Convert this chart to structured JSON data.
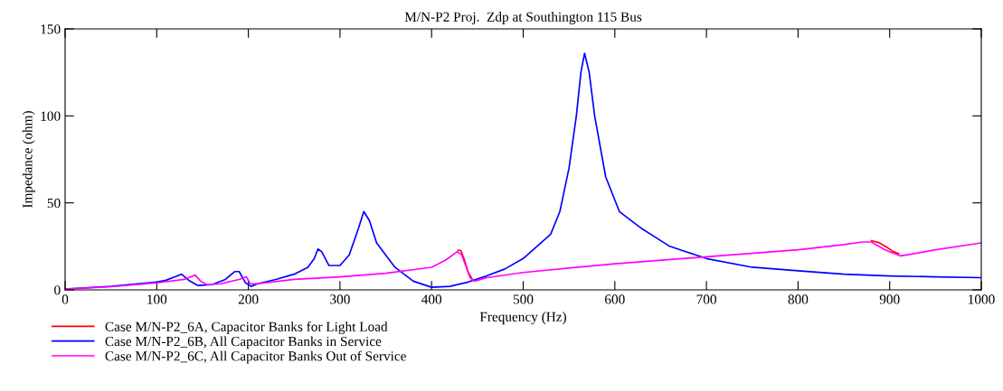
{
  "chart_data": {
    "type": "line",
    "title": "M/N-P2 Proj.  Zdp at Southington 115 Bus",
    "xlabel": "Frequency (Hz)",
    "ylabel": "Impedance (ohm)",
    "xlim": [
      0,
      1000
    ],
    "xticks": [
      0,
      100,
      200,
      300,
      400,
      500,
      600,
      700,
      800,
      900,
      1000
    ],
    "ylim": [
      0,
      150
    ],
    "yticks": [
      0,
      50,
      100,
      150
    ],
    "grid": false,
    "legend": "bottom left",
    "line_style": "solid",
    "series": [
      {
        "name": "Case M/N-P2_6A, Capacitor Banks for Light Load",
        "color": "#ff0000",
        "x": [
          429,
          432,
          436,
          440,
          444,
          660,
          880,
          888,
          896,
          904,
          910
        ],
        "values": [
          22.8,
          22.6,
          17,
          10,
          6.5,
          null,
          28.3,
          27.2,
          24.8,
          22,
          20.8
        ]
      },
      {
        "name": "Case M/N-P2_6B, All Capacitor Banks in Service",
        "color": "#0000ff",
        "x": [
          0,
          50,
          100,
          110,
          120,
          127,
          135,
          145,
          160,
          175,
          185,
          190,
          197,
          203,
          210,
          230,
          250,
          265,
          272,
          276,
          280,
          288,
          300,
          310,
          320,
          326,
          332,
          340,
          360,
          380,
          400,
          420,
          440,
          460,
          480,
          500,
          515,
          530,
          540,
          550,
          558,
          563,
          567,
          572,
          578,
          590,
          605,
          630,
          660,
          700,
          750,
          800,
          850,
          900,
          950,
          1000
        ],
        "values": [
          0.5,
          2,
          4.5,
          5.5,
          7.5,
          9,
          5.5,
          2.5,
          3,
          6,
          10.5,
          10.5,
          4,
          2,
          3.5,
          6,
          9,
          13,
          18,
          23.5,
          22,
          14,
          14,
          20,
          35,
          45,
          40,
          27,
          13,
          5,
          1.5,
          2,
          4.5,
          8,
          12,
          18,
          25,
          32,
          45,
          70,
          100,
          125,
          136,
          125,
          100,
          65,
          45,
          35,
          25,
          18,
          13,
          11,
          9,
          8,
          7.5,
          7
        ]
      },
      {
        "name": "Case M/N-P2_6C, All Capacitor Banks Out of Service",
        "color": "#ff00ff",
        "x": [
          0,
          20,
          50,
          100,
          130,
          142,
          148,
          155,
          170,
          190,
          198,
          202,
          210,
          250,
          300,
          350,
          400,
          415,
          428,
          433,
          442,
          447,
          460,
          500,
          560,
          600,
          700,
          800,
          850,
          870,
          880,
          895,
          912,
          950,
          1000
        ],
        "values": [
          0.5,
          1,
          1.8,
          4,
          6,
          8.5,
          5,
          3,
          3.5,
          6,
          7.5,
          3.5,
          3.5,
          6,
          7.5,
          9.5,
          13,
          17,
          22,
          20,
          7,
          5,
          7,
          10,
          13,
          15,
          19,
          23,
          26,
          27.5,
          27.5,
          23,
          19.5,
          23,
          27
        ]
      }
    ]
  }
}
